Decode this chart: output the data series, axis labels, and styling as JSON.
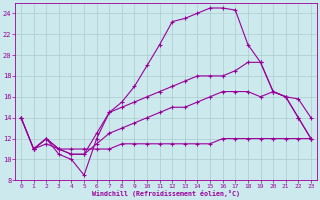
{
  "xlabel": "Windchill (Refroidissement éolien,°C)",
  "bg_color": "#cce9ee",
  "grid_color": "#aacccc",
  "line_color": "#990099",
  "xlim": [
    -0.5,
    23.5
  ],
  "ylim": [
    8,
    25
  ],
  "yticks": [
    8,
    10,
    12,
    14,
    16,
    18,
    20,
    22,
    24
  ],
  "xticks": [
    0,
    1,
    2,
    3,
    4,
    5,
    6,
    7,
    8,
    9,
    10,
    11,
    12,
    13,
    14,
    15,
    16,
    17,
    18,
    19,
    20,
    21,
    22,
    23
  ],
  "line1_x": [
    0,
    1,
    2,
    3,
    4,
    5,
    6,
    7,
    8,
    9,
    10,
    11,
    12,
    13,
    14,
    15,
    16,
    17,
    18,
    19,
    20,
    21,
    22,
    23
  ],
  "line1_y": [
    14,
    11,
    12,
    10.5,
    10,
    8.5,
    12,
    14.5,
    15.5,
    17,
    19,
    21,
    23.2,
    23.5,
    24,
    24.5,
    24.5,
    24.3,
    21,
    19.3,
    16.5,
    16,
    14,
    12
  ],
  "line2_x": [
    0,
    1,
    2,
    3,
    4,
    5,
    6,
    7,
    8,
    9,
    10,
    11,
    12,
    13,
    14,
    15,
    16,
    17,
    18,
    19,
    20,
    21,
    22,
    23
  ],
  "line2_y": [
    14,
    11,
    12,
    11,
    10.5,
    10.5,
    12.5,
    14.5,
    15,
    15.5,
    16,
    16.5,
    17,
    17.5,
    18,
    18,
    18,
    18.5,
    19.3,
    19.3,
    16.5,
    16,
    15.8,
    14
  ],
  "line3_x": [
    0,
    1,
    2,
    3,
    4,
    5,
    6,
    7,
    8,
    9,
    10,
    11,
    12,
    13,
    14,
    15,
    16,
    17,
    18,
    19,
    20,
    21,
    22,
    23
  ],
  "line3_y": [
    14,
    11,
    12,
    11,
    10.5,
    10.5,
    11.5,
    12.5,
    13,
    13.5,
    14,
    14.5,
    15,
    15,
    15.5,
    16,
    16.5,
    16.5,
    16.5,
    16,
    16.5,
    16,
    14,
    12
  ],
  "line4_x": [
    1,
    2,
    3,
    4,
    5,
    6,
    7,
    8,
    9,
    10,
    11,
    12,
    13,
    14,
    15,
    16,
    17,
    18,
    19,
    20,
    21,
    22,
    23
  ],
  "line4_y": [
    11,
    11.5,
    11,
    11,
    11,
    11,
    11,
    11.5,
    11.5,
    11.5,
    11.5,
    11.5,
    11.5,
    11.5,
    11.5,
    12,
    12,
    12,
    12,
    12,
    12,
    12,
    12
  ]
}
